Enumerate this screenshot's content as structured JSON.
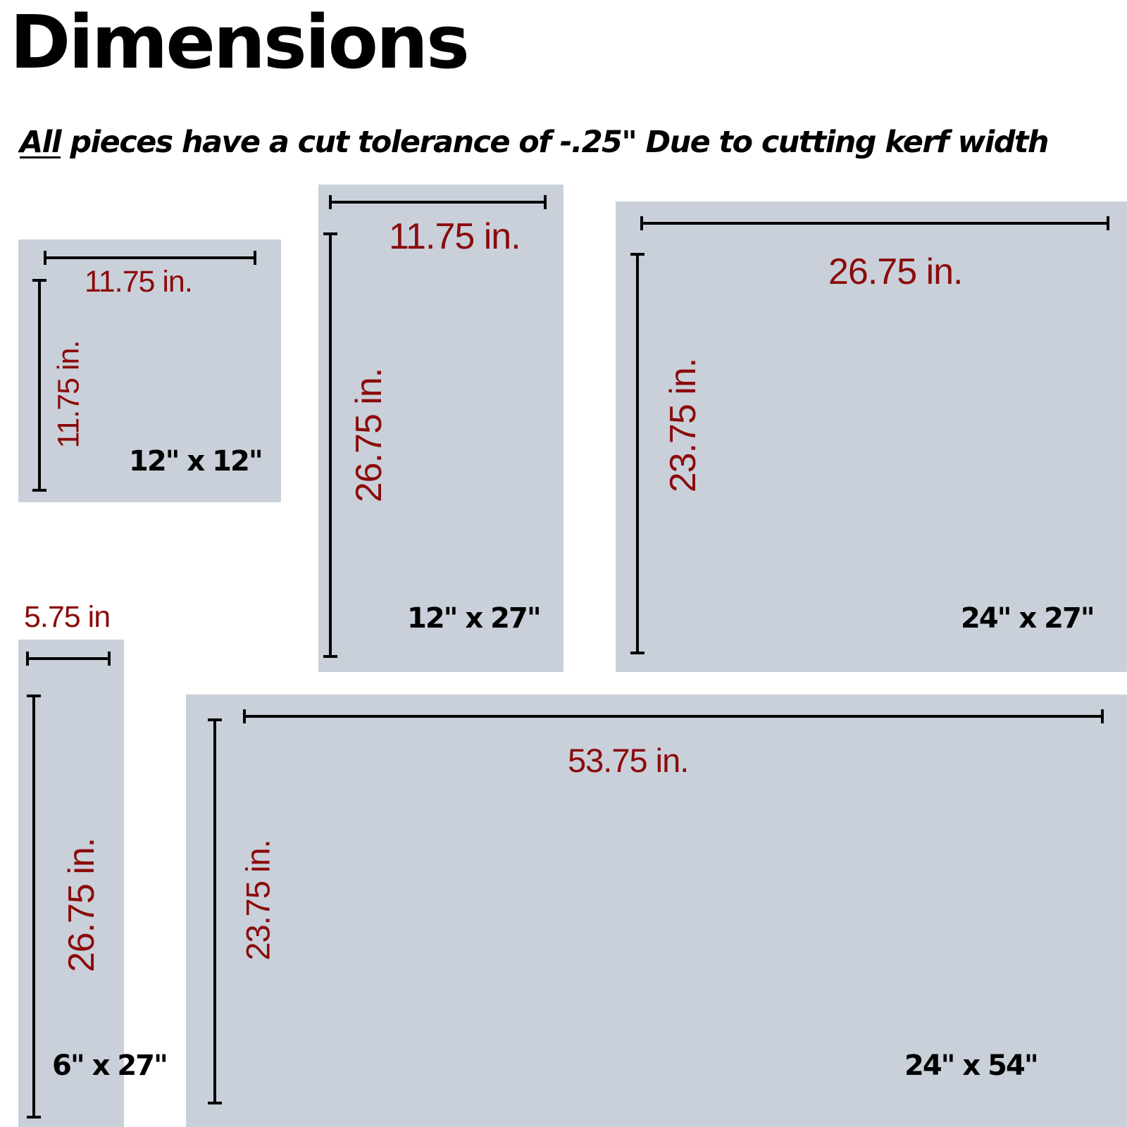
{
  "title": "Dimensions",
  "subtitle": {
    "emphasis": "All",
    "text": " pieces have a cut tolerance of -.25\" Due to cutting kerf width"
  },
  "pieces": [
    {
      "size_label": "12\" x 12\"",
      "width_label": "11.75 in.",
      "height_label": "11.75 in."
    },
    {
      "size_label": "12\" x 27\"",
      "width_label": "11.75 in.",
      "height_label": "26.75 in."
    },
    {
      "size_label": "24\" x 27\"",
      "width_label": "26.75 in.",
      "height_label": "23.75 in."
    },
    {
      "size_label": "6\" x 27\"",
      "width_label": "5.75 in",
      "height_label": "26.75 in."
    },
    {
      "size_label": "24\" x 54\"",
      "width_label": "53.75 in.",
      "height_label": "23.75 in."
    }
  ],
  "colors": {
    "piece_fill": "#c9d0da",
    "measurement_text": "#8b0b0b",
    "lines": "#000000"
  }
}
